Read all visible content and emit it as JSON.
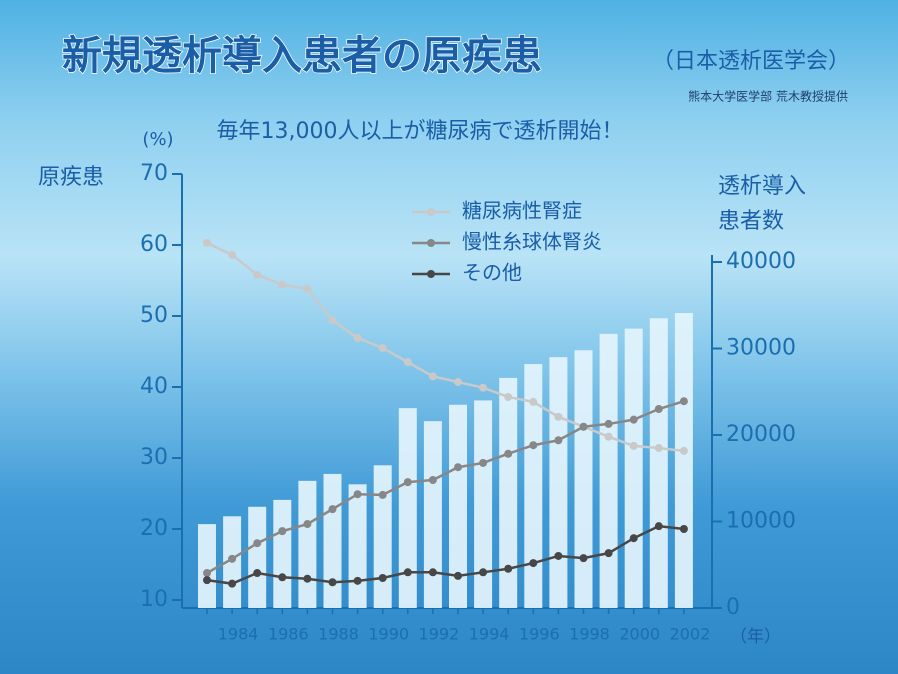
{
  "chart_data": {
    "type": "bar-line",
    "title": "新規透析導入患者の原疾患",
    "subtitle": "（日本透析医学会）",
    "credit": "熊本大学医学部 荒木教授提供",
    "headline": "毎年13,000人以上が糖尿病で透析開始！",
    "y_label": "原疾患",
    "y_unit": "(%)",
    "y2_label": [
      "透析導入",
      "患者数"
    ],
    "x_unit": "（年）",
    "categories": [
      null,
      "1984",
      null,
      "1986",
      null,
      "1988",
      null,
      "1990",
      null,
      "1992",
      null,
      "1994",
      null,
      "1996",
      null,
      "1998",
      null,
      "2000",
      null,
      "2002"
    ],
    "ylim": [
      10,
      70
    ],
    "yticks": [
      10,
      20,
      30,
      40,
      50,
      60,
      70
    ],
    "y2lim": [
      0,
      40000
    ],
    "y2ticks": [
      0,
      10000,
      20000,
      30000,
      40000
    ],
    "series": [
      {
        "type": "bar",
        "axis": "y2",
        "color": "#e4f4fc",
        "values": [
          9700,
          10600,
          11700,
          12500,
          14700,
          15500,
          14300,
          16500,
          23100,
          21600,
          23500,
          24000,
          26600,
          28200,
          29000,
          29800,
          31700,
          32300,
          33500,
          34100
        ]
      },
      {
        "type": "line",
        "name": "糖尿病性腎症",
        "color": "#c9c9c9",
        "values": [
          60.3,
          58.6,
          55.8,
          54.4,
          53.8,
          49.4,
          46.9,
          45.5,
          43.5,
          41.5,
          40.7,
          39.9,
          38.6,
          37.9,
          35.8,
          34.4,
          33.0,
          31.7,
          31.4,
          31.0
        ]
      },
      {
        "type": "line",
        "name": "慢性糸球体腎炎",
        "color": "#878787",
        "values": [
          13.8,
          15.8,
          18.0,
          19.7,
          20.7,
          22.8,
          24.9,
          24.8,
          26.6,
          26.9,
          28.7,
          29.3,
          30.6,
          31.8,
          32.5,
          34.4,
          34.8,
          35.4,
          36.9,
          38.0
        ]
      },
      {
        "type": "line",
        "name": "その他",
        "color": "#474747",
        "values": [
          12.8,
          12.3,
          13.8,
          13.2,
          13.0,
          12.5,
          12.7,
          13.1,
          13.9,
          13.9,
          13.4,
          13.9,
          14.4,
          15.2,
          16.2,
          15.9,
          16.6,
          18.7,
          20.4,
          20.0
        ]
      }
    ]
  }
}
